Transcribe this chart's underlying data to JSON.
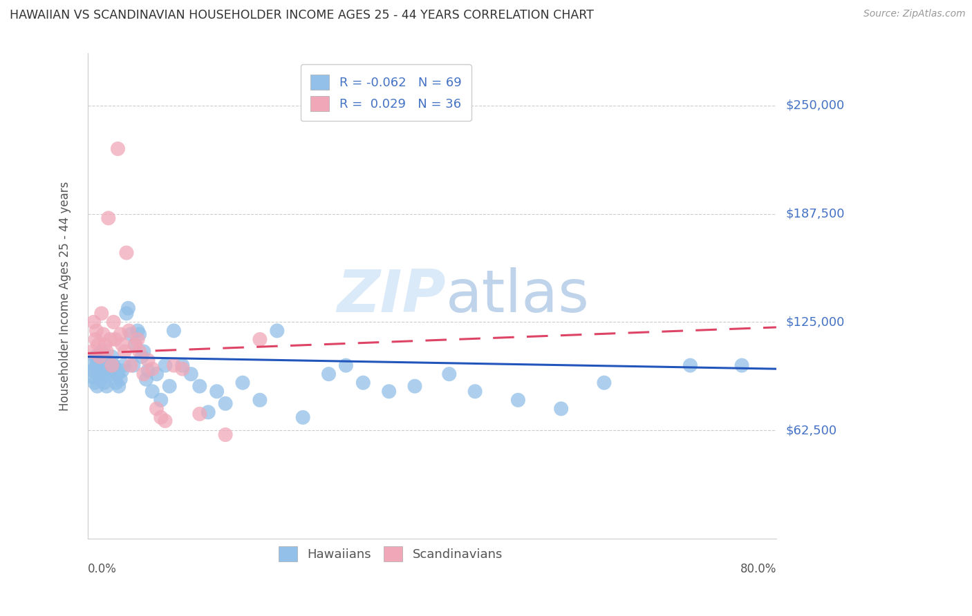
{
  "title": "HAWAIIAN VS SCANDINAVIAN HOUSEHOLDER INCOME AGES 25 - 44 YEARS CORRELATION CHART",
  "source": "Source: ZipAtlas.com",
  "ylabel": "Householder Income Ages 25 - 44 years",
  "ytick_values": [
    62500,
    125000,
    187500,
    250000
  ],
  "ytick_labels": [
    "$62,500",
    "$125,000",
    "$187,500",
    "$250,000"
  ],
  "ymin": 0,
  "ymax": 280000,
  "xmin": 0.0,
  "xmax": 0.8,
  "hawaiian_color": "#92c0e8",
  "scandinavian_color": "#f0a8b8",
  "hawaiian_line_color": "#2255bb",
  "scandinavian_line_color": "#dd4466",
  "right_label_color": "#4472c4",
  "grid_color": "#cccccc",
  "title_color": "#333333",
  "source_color": "#999999",
  "watermark_color": "#daeaf8",
  "legend_R_h": "-0.062",
  "legend_N_h": "69",
  "legend_R_s": "0.029",
  "legend_N_s": "36",
  "hawaiians_x": [
    0.004,
    0.006,
    0.007,
    0.008,
    0.009,
    0.01,
    0.011,
    0.012,
    0.013,
    0.014,
    0.015,
    0.016,
    0.017,
    0.018,
    0.019,
    0.02,
    0.021,
    0.022,
    0.023,
    0.025,
    0.027,
    0.028,
    0.03,
    0.032,
    0.033,
    0.035,
    0.036,
    0.038,
    0.04,
    0.042,
    0.045,
    0.047,
    0.05,
    0.053,
    0.055,
    0.058,
    0.06,
    0.063,
    0.065,
    0.068,
    0.07,
    0.075,
    0.08,
    0.085,
    0.09,
    0.095,
    0.1,
    0.11,
    0.12,
    0.13,
    0.14,
    0.15,
    0.16,
    0.18,
    0.2,
    0.22,
    0.25,
    0.28,
    0.3,
    0.32,
    0.35,
    0.38,
    0.42,
    0.45,
    0.5,
    0.55,
    0.6,
    0.7,
    0.76
  ],
  "hawaiians_y": [
    100000,
    97000,
    93000,
    90000,
    105000,
    100000,
    88000,
    95000,
    102000,
    97000,
    92000,
    108000,
    95000,
    100000,
    90000,
    95000,
    103000,
    88000,
    97000,
    100000,
    95000,
    105000,
    100000,
    98000,
    90000,
    95000,
    88000,
    92000,
    97000,
    100000,
    130000,
    133000,
    118000,
    100000,
    112000,
    120000,
    118000,
    105000,
    108000,
    92000,
    97000,
    85000,
    95000,
    80000,
    100000,
    88000,
    120000,
    100000,
    95000,
    88000,
    73000,
    85000,
    78000,
    90000,
    80000,
    120000,
    70000,
    95000,
    100000,
    90000,
    85000,
    88000,
    95000,
    85000,
    80000,
    75000,
    90000,
    100000,
    100000
  ],
  "scandinavians_x": [
    0.005,
    0.007,
    0.009,
    0.01,
    0.012,
    0.014,
    0.016,
    0.018,
    0.02,
    0.022,
    0.024,
    0.026,
    0.028,
    0.03,
    0.032,
    0.035,
    0.038,
    0.04,
    0.043,
    0.045,
    0.048,
    0.05,
    0.055,
    0.058,
    0.06,
    0.065,
    0.07,
    0.075,
    0.08,
    0.085,
    0.09,
    0.1,
    0.11,
    0.13,
    0.16,
    0.2
  ],
  "scandinavians_y": [
    108000,
    125000,
    115000,
    120000,
    112000,
    105000,
    130000,
    118000,
    112000,
    108000,
    185000,
    115000,
    100000,
    125000,
    115000,
    225000,
    118000,
    112000,
    108000,
    165000,
    120000,
    100000,
    112000,
    115000,
    108000,
    95000,
    103000,
    98000,
    75000,
    70000,
    68000,
    100000,
    98000,
    72000,
    60000,
    115000
  ]
}
